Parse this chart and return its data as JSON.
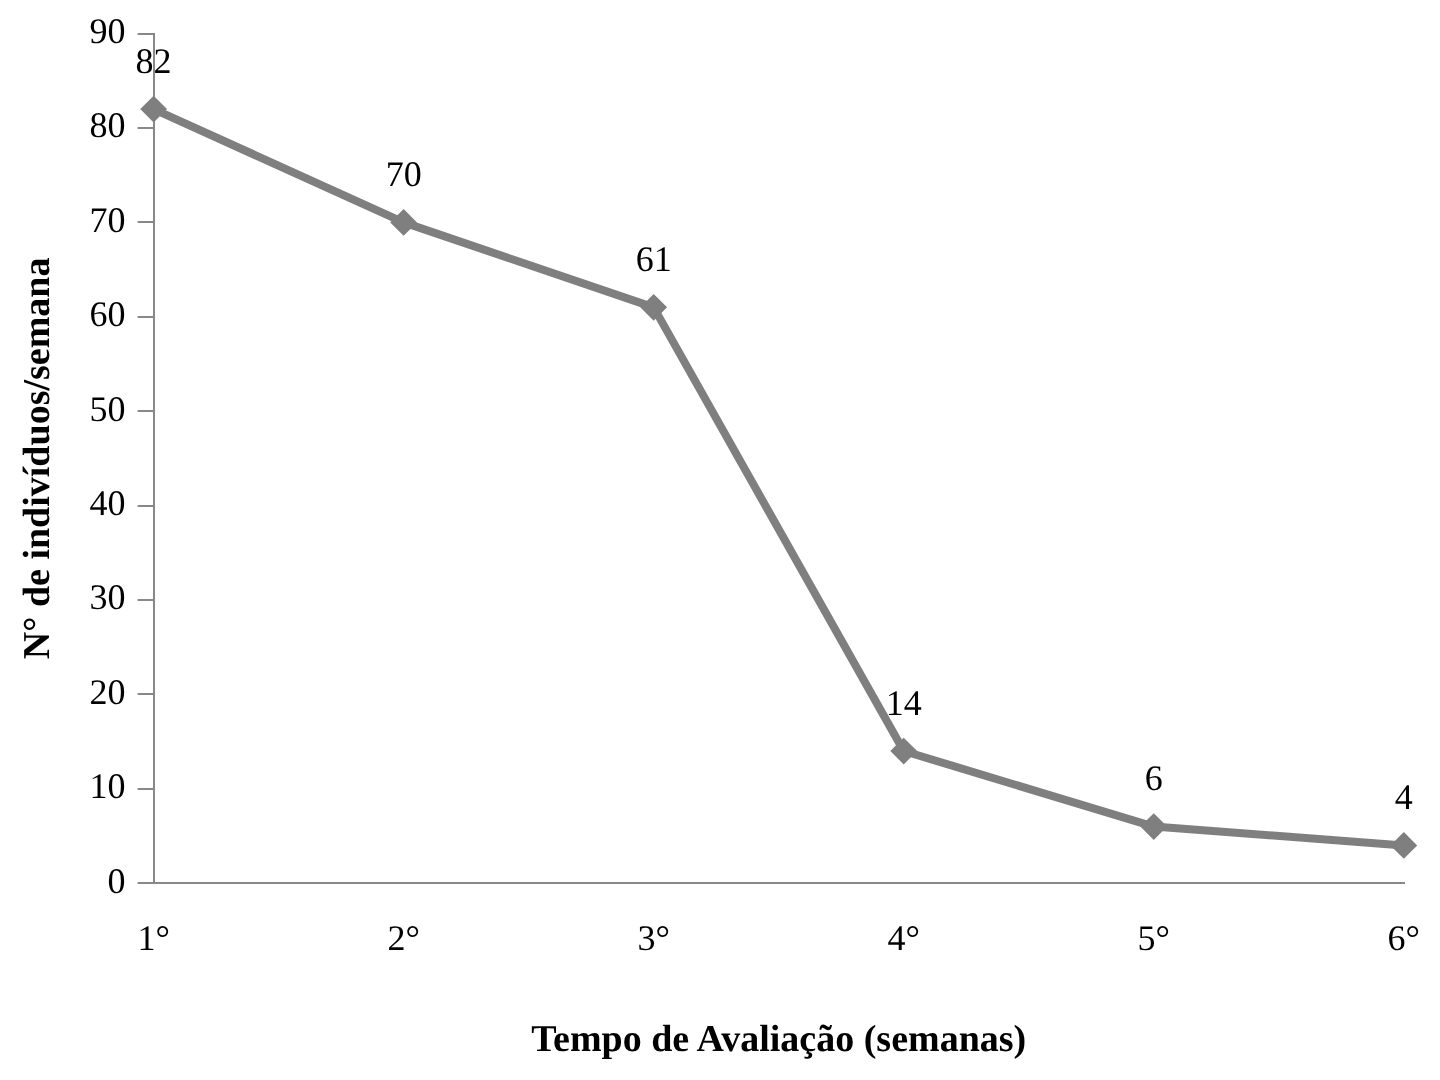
{
  "chart_data": {
    "type": "line",
    "xlabel": "Tempo de Avaliação (semanas)",
    "ylabel": "N° de indivíduos/semana",
    "categories": [
      "1°",
      "2°",
      "3°",
      "4°",
      "5°",
      "6°"
    ],
    "series": [
      {
        "color": "#7f7f7f",
        "values": [
          82,
          70,
          61,
          14,
          6,
          4
        ]
      }
    ],
    "ylim": [
      0,
      90
    ],
    "yticks": [
      0,
      10,
      20,
      30,
      40,
      50,
      60,
      70,
      80,
      90
    ],
    "grid": false,
    "legend": false,
    "marker": "diamond",
    "line_style": "solid",
    "data_labels": true
  }
}
